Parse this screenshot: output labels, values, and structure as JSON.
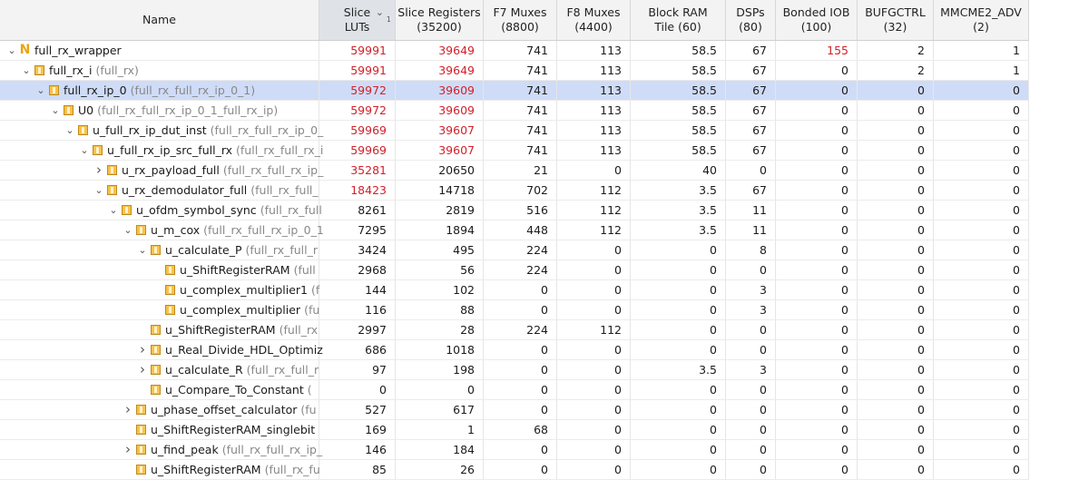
{
  "header": {
    "name": "Name",
    "cols": [
      "Slice\nLUTs",
      "Slice Registers\n(35200)",
      "F7 Muxes\n(8800)",
      "F8 Muxes\n(4400)",
      "Block RAM\nTile (60)",
      "DSPs\n(80)",
      "Bonded IOB\n(100)",
      "BUFGCTRL\n(32)",
      "MMCME2_ADV\n(2)"
    ],
    "sort_indicator": "1"
  },
  "rows": [
    {
      "depth": 0,
      "chev": "down",
      "icon": "top",
      "name": "full_rx_wrapper",
      "entity": "",
      "values": [
        "59991",
        "39649",
        "741",
        "113",
        "58.5",
        "67",
        "155",
        "2",
        "1"
      ],
      "red": [
        0,
        1,
        6
      ]
    },
    {
      "depth": 1,
      "chev": "down",
      "icon": "cell",
      "name": "full_rx_i",
      "entity": "(full_rx)",
      "values": [
        "59991",
        "39649",
        "741",
        "113",
        "58.5",
        "67",
        "0",
        "2",
        "1"
      ],
      "red": [
        0,
        1
      ]
    },
    {
      "depth": 2,
      "chev": "down",
      "icon": "cell",
      "name": "full_rx_ip_0",
      "entity": "(full_rx_full_rx_ip_0_1)",
      "values": [
        "59972",
        "39609",
        "741",
        "113",
        "58.5",
        "67",
        "0",
        "0",
        "0"
      ],
      "red": [
        0,
        1
      ],
      "selected": true
    },
    {
      "depth": 3,
      "chev": "down",
      "icon": "cell",
      "name": "U0",
      "entity": "(full_rx_full_rx_ip_0_1_full_rx_ip)",
      "values": [
        "59972",
        "39609",
        "741",
        "113",
        "58.5",
        "67",
        "0",
        "0",
        "0"
      ],
      "red": [
        0,
        1
      ]
    },
    {
      "depth": 4,
      "chev": "down",
      "icon": "cell",
      "name": "u_full_rx_ip_dut_inst",
      "entity": "(full_rx_full_rx_ip_0_",
      "values": [
        "59969",
        "39607",
        "741",
        "113",
        "58.5",
        "67",
        "0",
        "0",
        "0"
      ],
      "red": [
        0,
        1
      ]
    },
    {
      "depth": 5,
      "chev": "down",
      "icon": "cell",
      "name": "u_full_rx_ip_src_full_rx",
      "entity": "(full_rx_full_rx_i",
      "values": [
        "59969",
        "39607",
        "741",
        "113",
        "58.5",
        "67",
        "0",
        "0",
        "0"
      ],
      "red": [
        0,
        1
      ]
    },
    {
      "depth": 6,
      "chev": "right",
      "icon": "cell",
      "name": "u_rx_payload_full",
      "entity": "(full_rx_full_rx_ip_",
      "values": [
        "35281",
        "20650",
        "21",
        "0",
        "40",
        "0",
        "0",
        "0",
        "0"
      ],
      "red": [
        0
      ]
    },
    {
      "depth": 6,
      "chev": "down",
      "icon": "cell",
      "name": "u_rx_demodulator_full",
      "entity": "(full_rx_full_",
      "values": [
        "18423",
        "14718",
        "702",
        "112",
        "3.5",
        "67",
        "0",
        "0",
        "0"
      ],
      "red": [
        0
      ]
    },
    {
      "depth": 7,
      "chev": "down",
      "icon": "cell",
      "name": "u_ofdm_symbol_sync",
      "entity": "(full_rx_full",
      "values": [
        "8261",
        "2819",
        "516",
        "112",
        "3.5",
        "11",
        "0",
        "0",
        "0"
      ],
      "red": []
    },
    {
      "depth": 8,
      "chev": "down",
      "icon": "cell",
      "name": "u_m_cox",
      "entity": "(full_rx_full_rx_ip_0_1",
      "values": [
        "7295",
        "1894",
        "448",
        "112",
        "3.5",
        "11",
        "0",
        "0",
        "0"
      ],
      "red": []
    },
    {
      "depth": 9,
      "chev": "down",
      "icon": "cell",
      "name": "u_calculate_P",
      "entity": "(full_rx_full_r",
      "values": [
        "3424",
        "495",
        "224",
        "0",
        "0",
        "8",
        "0",
        "0",
        "0"
      ],
      "red": []
    },
    {
      "depth": 10,
      "chev": "none",
      "icon": "cell",
      "name": "u_ShiftRegisterRAM",
      "entity": "(full",
      "values": [
        "2968",
        "56",
        "224",
        "0",
        "0",
        "0",
        "0",
        "0",
        "0"
      ],
      "red": []
    },
    {
      "depth": 10,
      "chev": "none",
      "icon": "cell",
      "name": "u_complex_multiplier1",
      "entity": "(f",
      "values": [
        "144",
        "102",
        "0",
        "0",
        "0",
        "3",
        "0",
        "0",
        "0"
      ],
      "red": []
    },
    {
      "depth": 10,
      "chev": "none",
      "icon": "cell",
      "name": "u_complex_multiplier",
      "entity": "(fu",
      "values": [
        "116",
        "88",
        "0",
        "0",
        "0",
        "3",
        "0",
        "0",
        "0"
      ],
      "red": []
    },
    {
      "depth": 9,
      "chev": "none",
      "icon": "cell",
      "name": "u_ShiftRegisterRAM",
      "entity": "(full_rx",
      "values": [
        "2997",
        "28",
        "224",
        "112",
        "0",
        "0",
        "0",
        "0",
        "0"
      ],
      "red": []
    },
    {
      "depth": 9,
      "chev": "right",
      "icon": "cell",
      "name": "u_Real_Divide_HDL_Optimiz",
      "entity": "",
      "values": [
        "686",
        "1018",
        "0",
        "0",
        "0",
        "0",
        "0",
        "0",
        "0"
      ],
      "red": []
    },
    {
      "depth": 9,
      "chev": "right",
      "icon": "cell",
      "name": "u_calculate_R",
      "entity": "(full_rx_full_r",
      "values": [
        "97",
        "198",
        "0",
        "0",
        "3.5",
        "3",
        "0",
        "0",
        "0"
      ],
      "red": []
    },
    {
      "depth": 9,
      "chev": "none",
      "icon": "cell",
      "name": "u_Compare_To_Constant",
      "entity": "(",
      "values": [
        "0",
        "0",
        "0",
        "0",
        "0",
        "0",
        "0",
        "0",
        "0"
      ],
      "red": []
    },
    {
      "depth": 8,
      "chev": "right",
      "icon": "cell",
      "name": "u_phase_offset_calculator",
      "entity": "(fu",
      "values": [
        "527",
        "617",
        "0",
        "0",
        "0",
        "0",
        "0",
        "0",
        "0"
      ],
      "red": []
    },
    {
      "depth": 8,
      "chev": "none",
      "icon": "cell",
      "name": "u_ShiftRegisterRAM_singlebit",
      "entity": "",
      "values": [
        "169",
        "1",
        "68",
        "0",
        "0",
        "0",
        "0",
        "0",
        "0"
      ],
      "red": []
    },
    {
      "depth": 8,
      "chev": "right",
      "icon": "cell",
      "name": "u_find_peak",
      "entity": "(full_rx_full_rx_ip_",
      "values": [
        "146",
        "184",
        "0",
        "0",
        "0",
        "0",
        "0",
        "0",
        "0"
      ],
      "red": []
    },
    {
      "depth": 8,
      "chev": "none",
      "icon": "cell",
      "name": "u_ShiftRegisterRAM",
      "entity": "(full_rx_fu",
      "values": [
        "85",
        "26",
        "0",
        "0",
        "0",
        "0",
        "0",
        "0",
        "0"
      ],
      "red": []
    }
  ],
  "colors": {
    "red": "#d2202a",
    "selected": "#cfdcf7",
    "header": "#f3f3f3",
    "icon": "#f7c24a"
  },
  "icons": {
    "expanded": "chevron-down-icon",
    "collapsed": "chevron-right-icon",
    "top": "top-module-icon",
    "cell": "hierarchy-cell-icon"
  }
}
